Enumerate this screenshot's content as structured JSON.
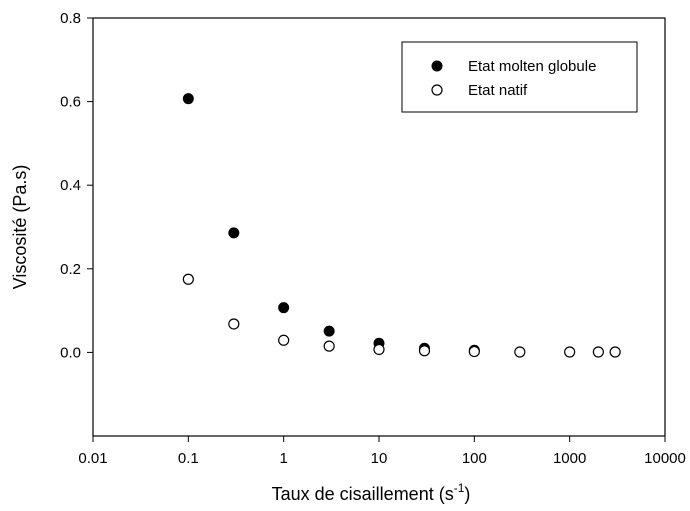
{
  "chart_data": {
    "type": "scatter",
    "xscale": "log",
    "xlim": [
      0.01,
      10000
    ],
    "ylim": [
      -0.2,
      0.8
    ],
    "xticks": [
      {
        "value": 0.01,
        "label": "0.01"
      },
      {
        "value": 0.1,
        "label": "0.1"
      },
      {
        "value": 1,
        "label": "1"
      },
      {
        "value": 10,
        "label": "10"
      },
      {
        "value": 100,
        "label": "100"
      },
      {
        "value": 1000,
        "label": "1000"
      },
      {
        "value": 10000,
        "label": "10000"
      }
    ],
    "yticks": [
      {
        "value": 0.0,
        "label": "0.0"
      },
      {
        "value": 0.2,
        "label": "0.2"
      },
      {
        "value": 0.4,
        "label": "0.4"
      },
      {
        "value": 0.6,
        "label": "0.6"
      },
      {
        "value": 0.8,
        "label": "0.8"
      }
    ],
    "xlabel": "Taux de cisaillement (s",
    "xlabel_sup": "-1",
    "xlabel_close": ")",
    "ylabel": "Viscosité (Pa.s)",
    "legend_position": "top-right",
    "grid": false,
    "series": [
      {
        "name": "Etat molten globule",
        "marker": "filled-circle",
        "color": "#000000",
        "points": [
          {
            "x": 0.1,
            "y": 0.607
          },
          {
            "x": 0.3,
            "y": 0.286
          },
          {
            "x": 1,
            "y": 0.107
          },
          {
            "x": 3,
            "y": 0.051
          },
          {
            "x": 10,
            "y": 0.022
          },
          {
            "x": 30,
            "y": 0.01
          },
          {
            "x": 100,
            "y": 0.005
          }
        ]
      },
      {
        "name": "Etat natif",
        "marker": "open-circle",
        "color": "#000000",
        "points": [
          {
            "x": 0.1,
            "y": 0.175
          },
          {
            "x": 0.3,
            "y": 0.068
          },
          {
            "x": 1,
            "y": 0.029
          },
          {
            "x": 3,
            "y": 0.015
          },
          {
            "x": 10,
            "y": 0.007
          },
          {
            "x": 30,
            "y": 0.004
          },
          {
            "x": 100,
            "y": 0.002
          },
          {
            "x": 300,
            "y": 0.001
          },
          {
            "x": 1000,
            "y": 0.001
          },
          {
            "x": 2000,
            "y": 0.001
          },
          {
            "x": 3000,
            "y": 0.001
          }
        ]
      }
    ]
  }
}
